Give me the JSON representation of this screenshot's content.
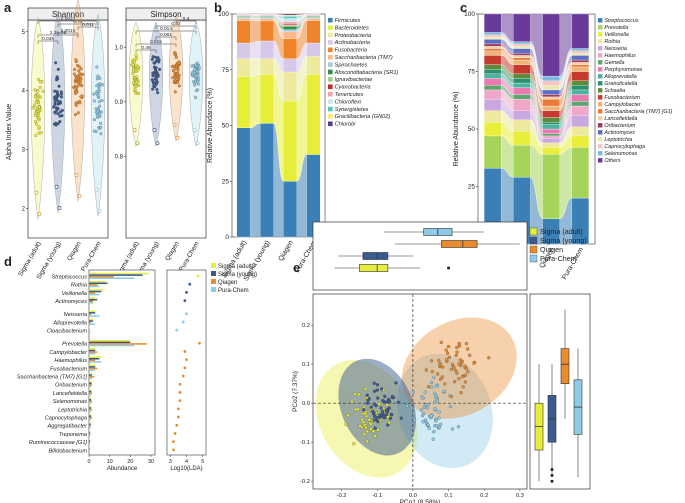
{
  "colors": {
    "sigma_adult": "#e8ec3a",
    "sigma_young": "#3b5a8f",
    "qiagen": "#ea8c2e",
    "pura": "#8dcbe8"
  },
  "panel_a": {
    "letter": "a",
    "ylabel": "Alpha Index Value",
    "groups": [
      "Sigma (adult)",
      "Sigma (young)",
      "Qiagen",
      "Pura-Chem"
    ],
    "shannon": {
      "title": "Shannon",
      "ylim": [
        1.5,
        5.2
      ],
      "yticks": [
        "2",
        "3",
        "4",
        "5"
      ],
      "medians": [
        3.8,
        3.9,
        4.1,
        3.85
      ],
      "pvalues": [
        "0.035",
        "2.3e-05",
        "0.0015",
        "0.011",
        "0.0023",
        "0.72"
      ]
    },
    "simpson": {
      "title": "Simpson",
      "ylim": [
        0.65,
        1.05
      ],
      "yticks": [
        "0.8",
        "0.9",
        "1.0"
      ],
      "medians": [
        0.95,
        0.95,
        0.96,
        0.95
      ],
      "pvalues": [
        "0.46",
        "0.015",
        "0.061",
        "0.014",
        "0.4",
        "0.32"
      ]
    }
  },
  "chart_data": [
    {
      "panel": "b",
      "type": "area",
      "letter": "b",
      "ylabel": "Relative Abundance (%)",
      "ylim": [
        0,
        100
      ],
      "yticks": [
        "0",
        "25",
        "50",
        "75",
        "100"
      ],
      "categories": [
        "Sigma (adult)",
        "Sigma (young)",
        "Qiagen",
        "Pura-Chem"
      ],
      "series": [
        {
          "name": "Firmicutes",
          "color": "#3a7fb5",
          "values": [
            49,
            51,
            25,
            37
          ]
        },
        {
          "name": "Bacteroidetes",
          "color": "#e6ee3a",
          "values": [
            23,
            22,
            36,
            36
          ]
        },
        {
          "name": "Proteobacteria",
          "color": "#ede99d",
          "values": [
            8,
            7,
            13,
            8
          ]
        },
        {
          "name": "Actinobacteria",
          "color": "#d7c8ea",
          "values": [
            7,
            8,
            6,
            6
          ]
        },
        {
          "name": "Fusobacteria",
          "color": "#ef8329",
          "values": [
            10,
            9,
            9,
            10
          ]
        },
        {
          "name": "Saccharibacteria (TM7)",
          "color": "#fbb88a",
          "values": [
            1,
            1,
            3,
            1
          ]
        },
        {
          "name": "Spirochaetes",
          "color": "#a8cbe4",
          "values": [
            0.5,
            0.6,
            1,
            0.5
          ]
        },
        {
          "name": "Absconditabacteria (SR1)",
          "color": "#2f8f4a",
          "values": [
            0.4,
            0.4,
            1.5,
            0.4
          ]
        },
        {
          "name": "Ignavibacteriae",
          "color": "#9bd08c",
          "values": [
            0.3,
            0.3,
            0.5,
            0.3
          ]
        },
        {
          "name": "Cyanobacteria",
          "color": "#c52a2a",
          "values": [
            0.2,
            0.2,
            0.5,
            0.2
          ]
        },
        {
          "name": "Tenericutes",
          "color": "#f4a4a4",
          "values": [
            0.2,
            0.2,
            1,
            0.2
          ]
        },
        {
          "name": "Chloroflexi",
          "color": "#c8e6f0",
          "values": [
            0.1,
            0.1,
            1.5,
            0.1
          ]
        },
        {
          "name": "Synergistetes",
          "color": "#5ac6c1",
          "values": [
            0.1,
            0.1,
            1,
            0.1
          ]
        },
        {
          "name": "Gracilibacteria (GN02)",
          "color": "#fde97a",
          "values": [
            0.1,
            0.1,
            0.5,
            0.1
          ]
        },
        {
          "name": "Chlorobi",
          "color": "#5b3a97",
          "values": [
            0.1,
            0.1,
            0.5,
            0.1
          ]
        }
      ]
    },
    {
      "panel": "c",
      "type": "area",
      "letter": "c",
      "ylabel": "Relative Abundance (%)",
      "ylim": [
        0,
        100
      ],
      "yticks": [
        "0",
        "25",
        "50",
        "75",
        "100"
      ],
      "categories": [
        "Sigma (adult)",
        "Sigma (young)",
        "Qiagen",
        "Pura-Chem"
      ],
      "series": [
        {
          "name": "Streptococcus",
          "color": "#3a7fb5",
          "values": [
            33,
            29,
            11,
            20
          ]
        },
        {
          "name": "Prevotella",
          "color": "#a6d45a",
          "values": [
            14,
            14,
            28,
            22
          ]
        },
        {
          "name": "Veillonella",
          "color": "#e8ee3a",
          "values": [
            6,
            6,
            3,
            5
          ]
        },
        {
          "name": "Rothia",
          "color": "#ede99d",
          "values": [
            5,
            5,
            2,
            4
          ]
        },
        {
          "name": "Neisseria",
          "color": "#c9a8e0",
          "values": [
            5,
            4,
            2,
            5
          ]
        },
        {
          "name": "Haemophilus",
          "color": "#f0a8c8",
          "values": [
            4,
            5,
            1,
            4
          ]
        },
        {
          "name": "Gemella",
          "color": "#5aa66e",
          "values": [
            2,
            2,
            1,
            2
          ]
        },
        {
          "name": "Porphyromonas",
          "color": "#e87ab0",
          "values": [
            3,
            3,
            2,
            3
          ]
        },
        {
          "name": "Alloprevotella",
          "color": "#4bb3a0",
          "values": [
            2,
            2,
            2,
            2
          ]
        },
        {
          "name": "Granulicatella",
          "color": "#2e8f6e",
          "values": [
            2,
            2,
            1,
            2
          ]
        },
        {
          "name": "Schaalia",
          "color": "#5a8c3a",
          "values": [
            2,
            2,
            2,
            2
          ]
        },
        {
          "name": "Fusobacterium",
          "color": "#c43a2e",
          "values": [
            4,
            4,
            3,
            4
          ]
        },
        {
          "name": "Campylobacter",
          "color": "#f0b37a",
          "values": [
            2,
            2,
            2,
            2
          ]
        },
        {
          "name": "Saccharibacteria (TM7) [G1]",
          "color": "#e87a3a",
          "values": [
            1,
            1,
            3,
            1
          ]
        },
        {
          "name": "Lancefieldella",
          "color": "#f5d0a8",
          "values": [
            1,
            1,
            1,
            1
          ]
        },
        {
          "name": "Oribacterium",
          "color": "#a03a5a",
          "values": [
            1,
            1,
            1,
            1
          ]
        },
        {
          "name": "Actinomyces",
          "color": "#5a6ec4",
          "values": [
            2,
            2,
            2,
            2
          ]
        },
        {
          "name": "Leptotrichia",
          "color": "#e8e8b0",
          "values": [
            1,
            1,
            2,
            1
          ]
        },
        {
          "name": "Capnocytophaga",
          "color": "#f8c4c4",
          "values": [
            1,
            1,
            2,
            1
          ]
        },
        {
          "name": "Selenomonas",
          "color": "#7ab8e0",
          "values": [
            1,
            1,
            2,
            1
          ]
        },
        {
          "name": "Others",
          "color": "#6a3a9a",
          "values": [
            8,
            12,
            27,
            15
          ]
        }
      ]
    },
    {
      "panel": "d",
      "type": "bar",
      "letter": "d",
      "xlabel": "Abundance",
      "xlabel2": "Log10(LDA)",
      "xticks": [
        "0",
        "10",
        "20",
        "30"
      ],
      "ldaticks": [
        "3",
        "4",
        "5"
      ],
      "taxa": [
        "Streptococcus",
        "Rothia",
        "Veillonella",
        "Actinomyces",
        "Neisseria",
        "Alloprevotella",
        "Cloacibacterium",
        "Prevotella",
        "Campylobacter",
        "Haemophilus",
        "Fusobacterium",
        "Saccharibacteria (TM7) [G1]",
        "Oribacterium",
        "Lancefieldella",
        "Selenomonas",
        "Leptotrichia",
        "Capnocytophaga",
        "Aggregatibacter",
        "Treponema",
        "Ruminococcaceae [G1]",
        "Bifidobacterium"
      ],
      "gaps_after": [
        3,
        6
      ],
      "series": [
        {
          "name": "Sigma (adult)",
          "values": [
            29,
            8,
            7,
            3,
            3,
            2,
            0.3,
            20,
            3,
            6,
            3,
            1.5,
            1.2,
            1.2,
            1.2,
            1,
            1,
            0.8,
            0.5,
            0.4,
            0.5
          ]
        },
        {
          "name": "Sigma (young)",
          "values": [
            26,
            9,
            6,
            4,
            3,
            2,
            0.2,
            20,
            3,
            5,
            3,
            1.4,
            1.3,
            1.2,
            1,
            1,
            1,
            0.8,
            0.5,
            0.4,
            0.3
          ]
        },
        {
          "name": "Qiagen",
          "values": [
            12,
            4,
            3,
            2,
            1,
            1,
            0.1,
            28,
            4,
            3,
            4,
            2.5,
            1.5,
            1.5,
            1.5,
            1.5,
            1.5,
            1,
            0.8,
            0.6,
            0.3
          ]
        },
        {
          "name": "Pura-Chem",
          "values": [
            22,
            5,
            5,
            2,
            5,
            3,
            0.8,
            22,
            3,
            6,
            3,
            1.5,
            1.2,
            1.2,
            1.2,
            1,
            1,
            0.8,
            0.5,
            0.4,
            0.3
          ]
        }
      ],
      "lda": {
        "values": [
          4.7,
          4.2,
          4.0,
          3.9,
          4.0,
          3.8,
          3.4,
          4.8,
          3.9,
          4.0,
          3.9,
          3.8,
          3.6,
          3.6,
          3.6,
          3.5,
          3.5,
          3.4,
          3.3,
          3.2,
          3.2
        ],
        "groups": [
          "Sigma (adult)",
          "Sigma (young)",
          "Sigma (young)",
          "Sigma (young)",
          "Pura-Chem",
          "Pura-Chem",
          "Pura-Chem",
          "Qiagen",
          "Qiagen",
          "Qiagen",
          "Qiagen",
          "Qiagen",
          "Qiagen",
          "Qiagen",
          "Qiagen",
          "Qiagen",
          "Qiagen",
          "Qiagen",
          "Qiagen",
          "Qiagen",
          "Qiagen"
        ]
      },
      "legend": [
        "Sigma (adult)",
        "Sigma (young)",
        "Qiagen",
        "Pura-Chem"
      ]
    },
    {
      "panel": "e",
      "type": "scatter",
      "letter": "e",
      "xlabel": "PCo1 (8.58%)",
      "ylabel": "PCo2 (7.37%)",
      "xlim": [
        -0.28,
        0.32
      ],
      "ylim": [
        -0.22,
        0.28
      ],
      "xticks": [
        "-0.2",
        "-0.1",
        "0.0",
        "0.1",
        "0.2",
        "0.3"
      ],
      "yticks": [
        "-0.2",
        "-0.1",
        "0.0",
        "0.1",
        "0.2"
      ],
      "legend": [
        "Sigma (adult)",
        "Sigma (young)",
        "Qiagen",
        "Pura-Chem"
      ],
      "centroids": [
        {
          "x": -0.12,
          "y": -0.03
        },
        {
          "x": -0.09,
          "y": -0.01
        },
        {
          "x": 0.12,
          "y": 0.09
        },
        {
          "x": 0.06,
          "y": -0.02
        }
      ],
      "box_x": [
        {
          "q1": -0.15,
          "med": -0.1,
          "q3": -0.07,
          "min": -0.22,
          "max": 0.02
        },
        {
          "q1": -0.14,
          "med": -0.1,
          "q3": -0.07,
          "min": -0.21,
          "max": 0.0
        },
        {
          "q1": 0.08,
          "med": 0.14,
          "q3": 0.18,
          "min": -0.05,
          "max": 0.3
        },
        {
          "q1": 0.03,
          "med": 0.07,
          "q3": 0.11,
          "min": -0.08,
          "max": 0.2
        }
      ],
      "box_y": [
        {
          "q1": -0.12,
          "med": -0.06,
          "q3": 0.0,
          "min": -0.2,
          "max": 0.1
        },
        {
          "q1": -0.1,
          "med": -0.04,
          "q3": 0.02,
          "min": -0.18,
          "max": 0.1
        },
        {
          "q1": 0.05,
          "med": 0.1,
          "q3": 0.14,
          "min": -0.04,
          "max": 0.24
        },
        {
          "q1": -0.08,
          "med": -0.01,
          "q3": 0.06,
          "min": -0.19,
          "max": 0.14
        }
      ]
    }
  ]
}
